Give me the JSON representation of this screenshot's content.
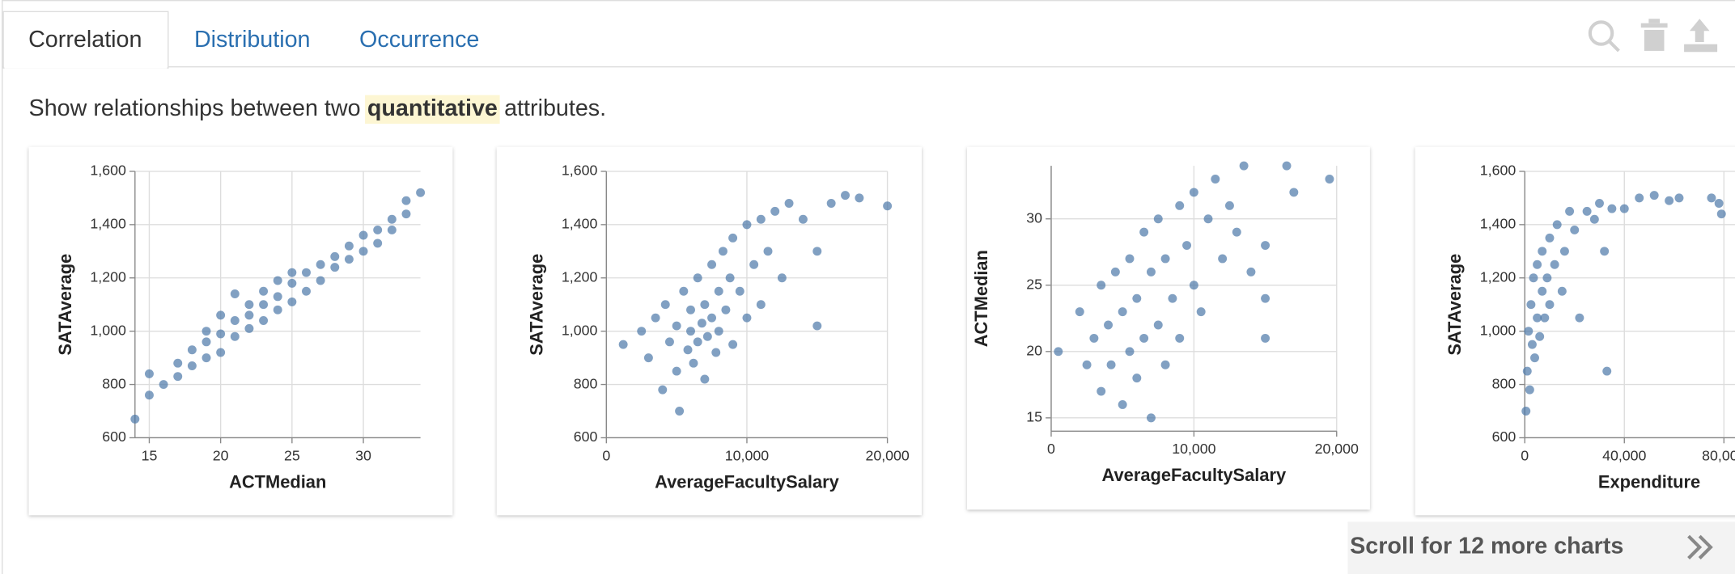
{
  "tabs": [
    "Correlation",
    "Distribution",
    "Occurrence"
  ],
  "description": [
    "Show relationships between two",
    "quantitative",
    "attributes."
  ],
  "footer": "Scroll for 12 more charts",
  "chart_data": [
    {
      "type": "scatter",
      "x_label": "ACTMedian",
      "y_label": "SATAverage",
      "color": "#4c78a8",
      "grid": true,
      "xlim": [
        14,
        34
      ],
      "ylim": [
        600,
        1600
      ],
      "xticks": [
        15,
        20,
        25,
        30
      ],
      "yticks": [
        600,
        800,
        {
          "value": 1000,
          "label": "1,000"
        },
        {
          "value": 1200,
          "label": "1,200"
        },
        {
          "value": 1400,
          "label": "1,400"
        },
        {
          "value": 1600,
          "label": "1,600"
        }
      ],
      "x": [
        14,
        15,
        15,
        16,
        17,
        17,
        18,
        18,
        19,
        19,
        19,
        20,
        20,
        20,
        21,
        21,
        21,
        22,
        22,
        22,
        23,
        23,
        23,
        24,
        24,
        24,
        25,
        25,
        25,
        26,
        26,
        27,
        27,
        28,
        28,
        29,
        29,
        30,
        30,
        31,
        31,
        32,
        32,
        33,
        33,
        34
      ],
      "values": [
        670,
        840,
        760,
        800,
        830,
        880,
        870,
        930,
        900,
        960,
        1000,
        920,
        990,
        1060,
        980,
        1040,
        1140,
        1010,
        1060,
        1100,
        1040,
        1100,
        1150,
        1080,
        1130,
        1190,
        1110,
        1180,
        1220,
        1150,
        1220,
        1190,
        1250,
        1240,
        1280,
        1270,
        1320,
        1300,
        1360,
        1330,
        1380,
        1380,
        1420,
        1440,
        1490,
        1520
      ]
    },
    {
      "type": "scatter",
      "x_label": "AverageFacultySalary",
      "y_label": "SATAverage",
      "color": "#4c78a8",
      "grid": true,
      "xlim": [
        0,
        20000
      ],
      "ylim": [
        600,
        1600
      ],
      "xticks": [
        0,
        {
          "value": 10000,
          "label": "10,000"
        },
        {
          "value": 20000,
          "label": "20,000"
        }
      ],
      "yticks": [
        600,
        800,
        {
          "value": 1000,
          "label": "1,000"
        },
        {
          "value": 1200,
          "label": "1,200"
        },
        {
          "value": 1400,
          "label": "1,400"
        },
        {
          "value": 1600,
          "label": "1,600"
        }
      ],
      "x": [
        1200,
        2500,
        3000,
        3500,
        4000,
        4200,
        4500,
        5000,
        5000,
        5200,
        5500,
        5800,
        6000,
        6000,
        6200,
        6500,
        6500,
        6800,
        7000,
        7000,
        7200,
        7500,
        7500,
        7800,
        8000,
        8000,
        8300,
        8500,
        8800,
        9000,
        9000,
        9500,
        10000,
        10000,
        10500,
        11000,
        11000,
        11500,
        12000,
        12500,
        13000,
        14000,
        15000,
        15000,
        16000,
        17000,
        18000,
        20000
      ],
      "values": [
        950,
        1000,
        900,
        1050,
        780,
        1100,
        960,
        850,
        1020,
        700,
        1150,
        930,
        1000,
        1080,
        880,
        1200,
        960,
        1030,
        820,
        1100,
        980,
        1250,
        1050,
        920,
        1150,
        1000,
        1300,
        1080,
        1200,
        950,
        1350,
        1150,
        1400,
        1050,
        1250,
        1420,
        1100,
        1300,
        1450,
        1200,
        1480,
        1420,
        1020,
        1300,
        1480,
        1510,
        1500,
        1470
      ]
    },
    {
      "type": "scatter",
      "x_label": "AverageFacultySalary",
      "y_label": "ACTMedian",
      "color": "#4c78a8",
      "grid": true,
      "xlim": [
        0,
        20000
      ],
      "ylim": [
        14,
        34
      ],
      "xticks": [
        0,
        {
          "value": 10000,
          "label": "10,000"
        },
        {
          "value": 20000,
          "label": "20,000"
        }
      ],
      "yticks": [
        15,
        20,
        25,
        30
      ],
      "x": [
        500,
        2000,
        2500,
        3000,
        3500,
        3500,
        4000,
        4200,
        4500,
        5000,
        5000,
        5500,
        5500,
        6000,
        6000,
        6500,
        6500,
        7000,
        7000,
        7500,
        7500,
        8000,
        8000,
        8500,
        9000,
        9000,
        9500,
        10000,
        10000,
        10500,
        11000,
        11500,
        12000,
        12500,
        13000,
        13500,
        14000,
        15000,
        15000,
        15000,
        16500,
        17000,
        19500
      ],
      "values": [
        20,
        23,
        19,
        21,
        17,
        25,
        22,
        19,
        26,
        16,
        23,
        20,
        27,
        18,
        24,
        29,
        21,
        15,
        26,
        22,
        30,
        19,
        27,
        24,
        31,
        21,
        28,
        25,
        32,
        23,
        30,
        33,
        27,
        31,
        29,
        34,
        26,
        28,
        24,
        21,
        34,
        32,
        33
      ]
    },
    {
      "type": "scatter",
      "x_label": "Expenditure",
      "y_label": "SATAverage",
      "color": "#4c78a8",
      "grid": true,
      "xlim": [
        0,
        100000
      ],
      "ylim": [
        600,
        1600
      ],
      "xticks": [
        0,
        {
          "value": 40000,
          "label": "40,000"
        },
        {
          "value": 80000,
          "label": "80,000"
        }
      ],
      "yticks": [
        600,
        800,
        {
          "value": 1000,
          "label": "1,000"
        },
        {
          "value": 1200,
          "label": "1,200"
        },
        {
          "value": 1400,
          "label": "1,400"
        },
        {
          "value": 1600,
          "label": "1,600"
        }
      ],
      "x": [
        500,
        1000,
        1500,
        2000,
        2500,
        3000,
        3500,
        4000,
        5000,
        5000,
        6000,
        7000,
        7000,
        8000,
        9000,
        10000,
        10000,
        12000,
        13000,
        15000,
        16000,
        18000,
        20000,
        22000,
        25000,
        28000,
        30000,
        32000,
        33000,
        35000,
        40000,
        46000,
        52000,
        58000,
        62000,
        75000,
        78000,
        79000
      ],
      "values": [
        700,
        850,
        1000,
        780,
        1100,
        950,
        1200,
        900,
        1050,
        1250,
        980,
        1150,
        1300,
        1050,
        1200,
        1350,
        1100,
        1250,
        1400,
        1150,
        1300,
        1450,
        1380,
        1050,
        1450,
        1420,
        1480,
        1300,
        850,
        1460,
        1460,
        1500,
        1510,
        1490,
        1500,
        1500,
        1480,
        1440
      ]
    }
  ]
}
